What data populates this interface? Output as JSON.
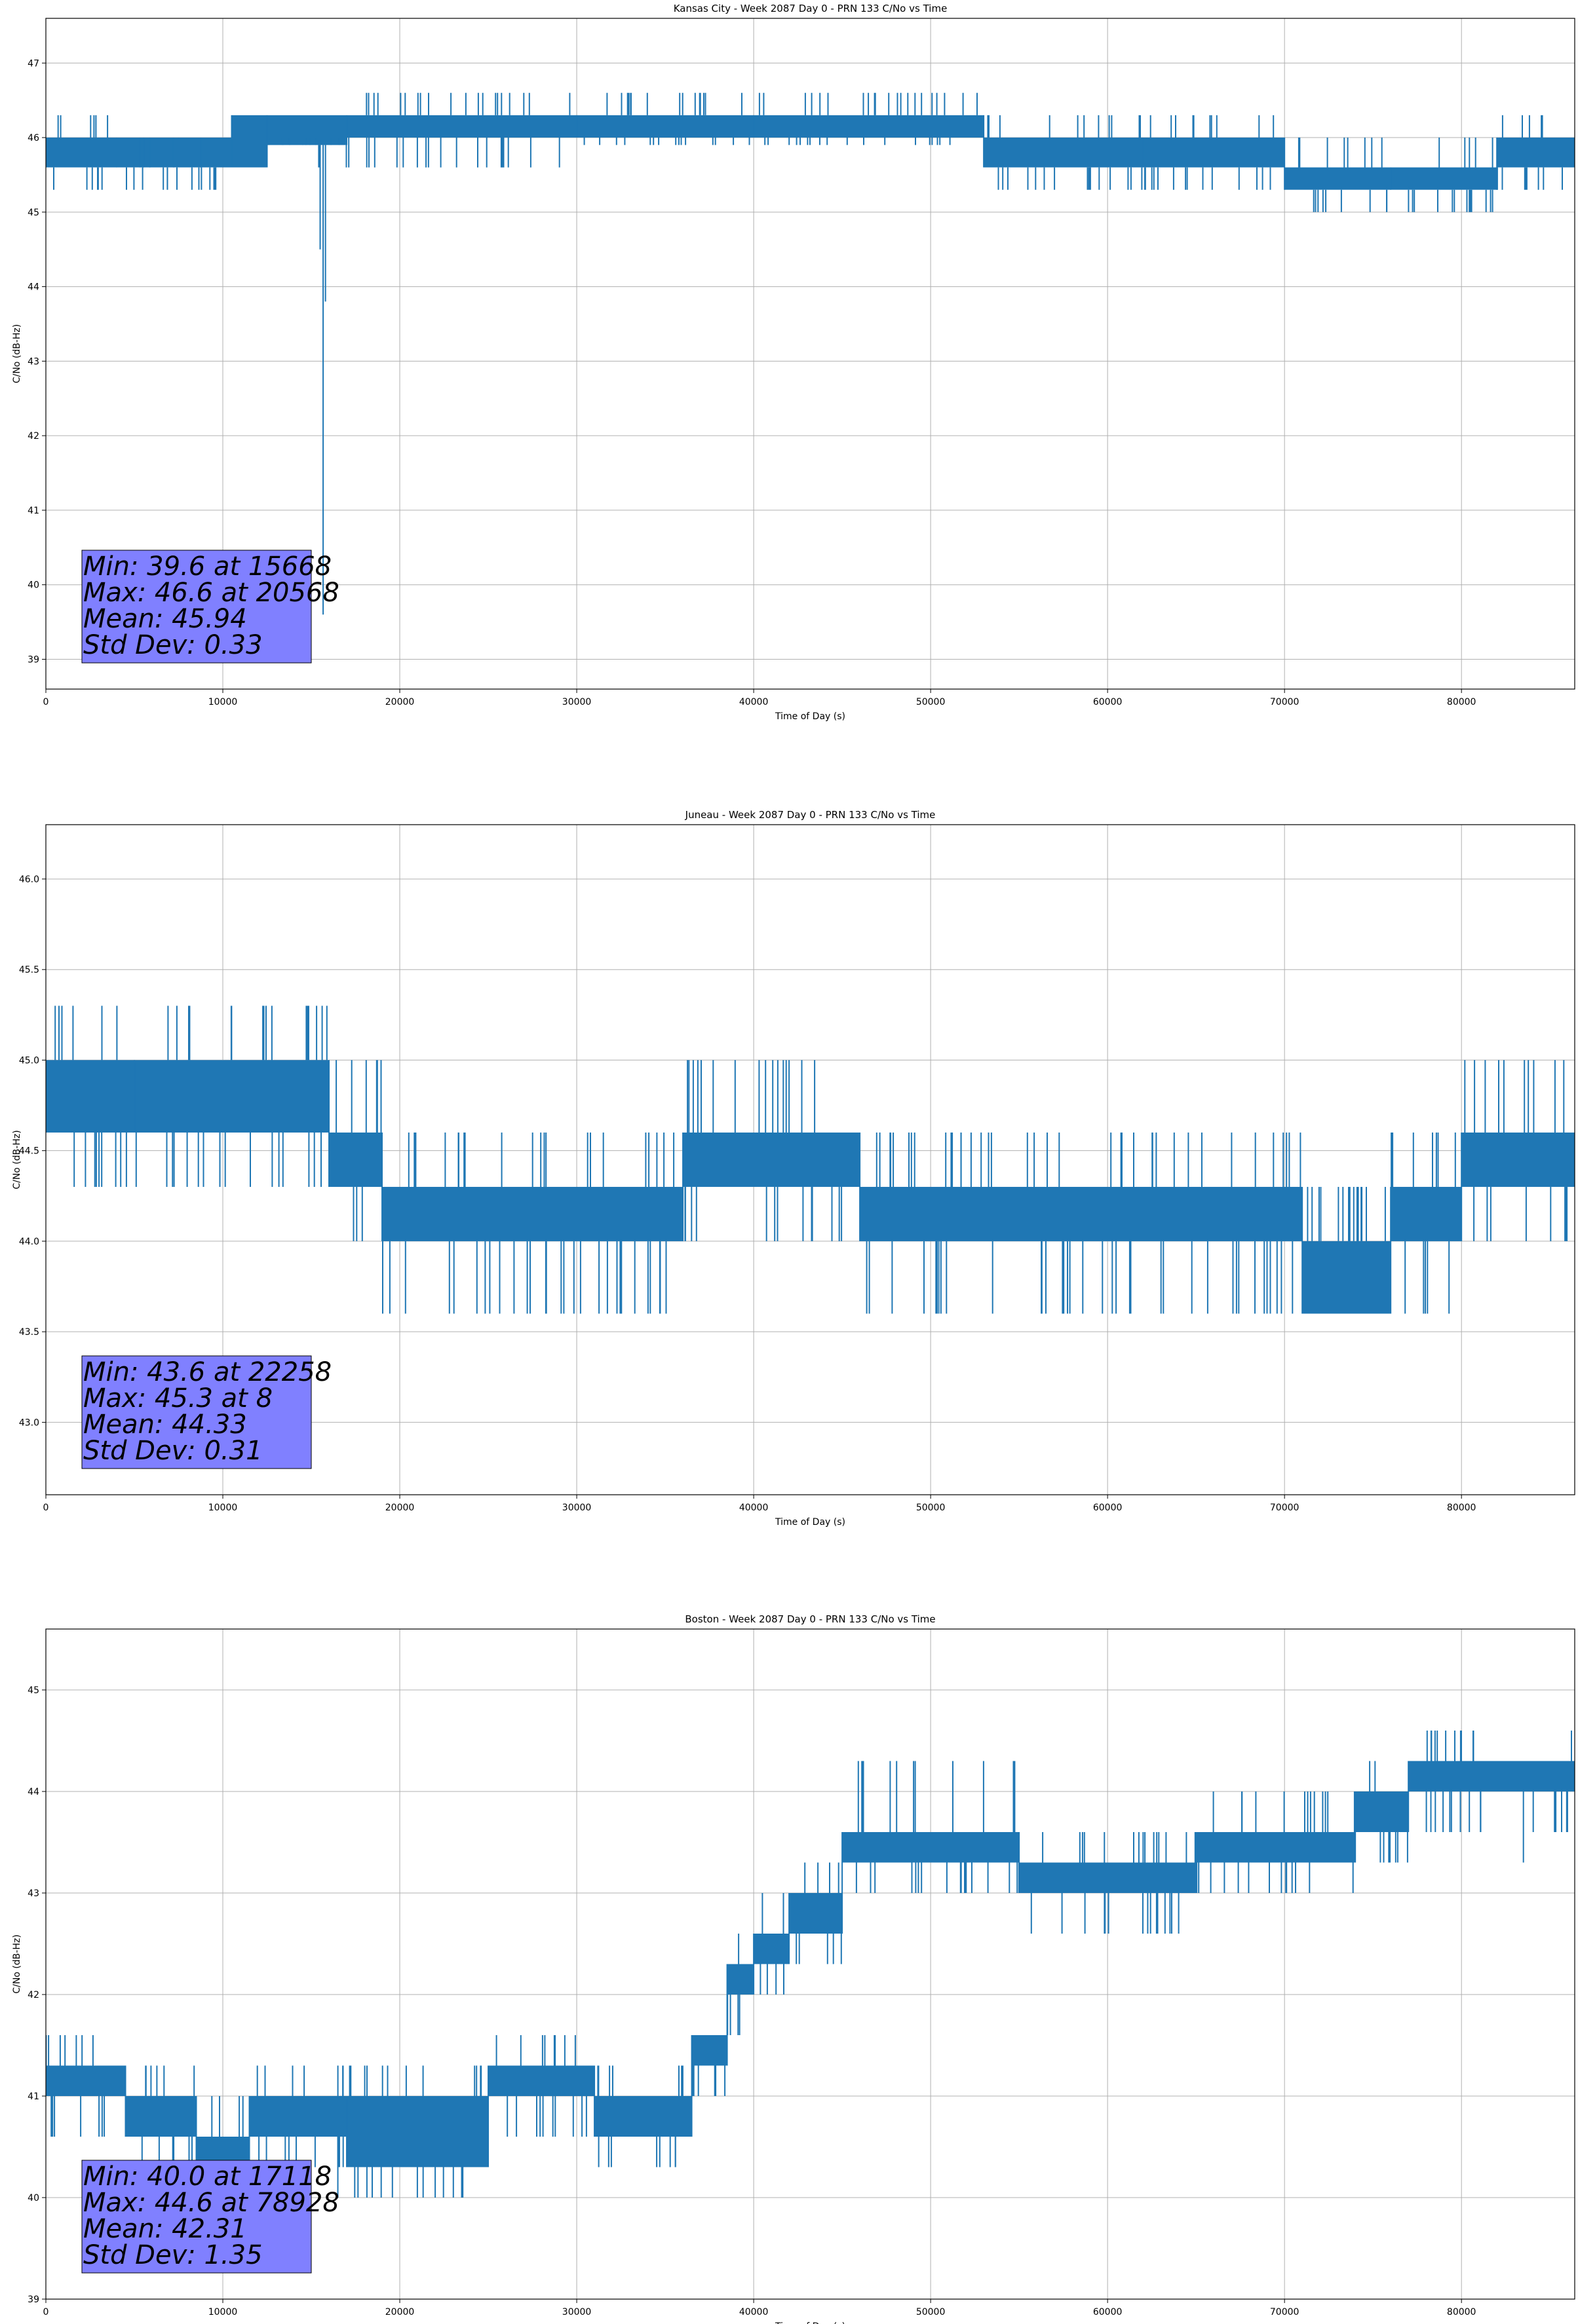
{
  "chart_data": [
    {
      "type": "line",
      "title": "Kansas City - Week 2087 Day 0 - PRN 133 C/No vs Time",
      "xlabel": "Time of Day (s)",
      "ylabel": "C/No (dB-Hz)",
      "xlim": [
        0,
        86400
      ],
      "ylim": [
        38.6,
        47.6
      ],
      "xticks": [
        0,
        10000,
        20000,
        30000,
        40000,
        50000,
        60000,
        70000,
        80000
      ],
      "yticks": [
        39,
        40,
        41,
        42,
        43,
        44,
        45,
        46,
        47
      ],
      "ytick_decimals": 0,
      "grid": true,
      "line_color": "#1f77b4",
      "stats_box": [
        "Min: 39.6 at 15668",
        "Max: 46.6 at 20568",
        "Mean: 45.94",
        "Std Dev: 0.33"
      ],
      "stats_box_color": "#8080ff",
      "series": [
        {
          "name": "C/No",
          "bands": [
            {
              "x0": 0,
              "x1": 4000,
              "lo": 45.6,
              "hi": 46.0,
              "excursions": [
                45.3,
                46.3
              ]
            },
            {
              "x0": 4000,
              "x1": 7500,
              "lo": 45.6,
              "hi": 46.0,
              "excursions": [
                45.3,
                46.0
              ]
            },
            {
              "x0": 7500,
              "x1": 10500,
              "lo": 45.6,
              "hi": 46.0,
              "excursions": [
                45.3,
                46.0
              ]
            },
            {
              "x0": 10500,
              "x1": 12500,
              "lo": 45.6,
              "hi": 46.3,
              "excursions": []
            },
            {
              "x0": 12500,
              "x1": 17000,
              "lo": 45.9,
              "hi": 46.3,
              "excursions": [
                45.6,
                46.0
              ]
            },
            {
              "x0": 17000,
              "x1": 30000,
              "lo": 46.0,
              "hi": 46.3,
              "excursions": [
                45.6,
                46.6
              ]
            },
            {
              "x0": 30000,
              "x1": 40000,
              "lo": 46.0,
              "hi": 46.3,
              "excursions": [
                45.9,
                46.6
              ]
            },
            {
              "x0": 40000,
              "x1": 53000,
              "lo": 46.0,
              "hi": 46.3,
              "excursions": [
                45.9,
                46.6
              ]
            },
            {
              "x0": 53000,
              "x1": 62000,
              "lo": 45.6,
              "hi": 46.0,
              "excursions": [
                45.3,
                46.3
              ]
            },
            {
              "x0": 62000,
              "x1": 70000,
              "lo": 45.6,
              "hi": 46.0,
              "excursions": [
                45.3,
                46.3
              ]
            },
            {
              "x0": 70000,
              "x1": 76000,
              "lo": 45.3,
              "hi": 45.6,
              "excursions": [
                45.0,
                46.0
              ]
            },
            {
              "x0": 76000,
              "x1": 82000,
              "lo": 45.3,
              "hi": 45.6,
              "excursions": [
                45.0,
                46.0
              ]
            },
            {
              "x0": 82000,
              "x1": 86400,
              "lo": 45.6,
              "hi": 46.0,
              "excursions": [
                45.3,
                46.3
              ]
            }
          ],
          "spikes": [
            {
              "x": 15500,
              "y": 44.5
            },
            {
              "x": 15668,
              "y": 39.6
            },
            {
              "x": 15800,
              "y": 43.8
            }
          ]
        }
      ]
    },
    {
      "type": "line",
      "title": "Juneau - Week 2087 Day 0 - PRN 133 C/No vs Time",
      "xlabel": "Time of Day (s)",
      "ylabel": "C/No (dB-Hz)",
      "xlim": [
        0,
        86400
      ],
      "ylim": [
        42.6,
        46.3
      ],
      "xticks": [
        0,
        10000,
        20000,
        30000,
        40000,
        50000,
        60000,
        70000,
        80000
      ],
      "yticks": [
        43.0,
        43.5,
        44.0,
        44.5,
        45.0,
        45.5,
        46.0
      ],
      "ytick_decimals": 1,
      "grid": true,
      "line_color": "#1f77b4",
      "stats_box": [
        "Min: 43.6 at 22258",
        "Max: 45.3 at 8",
        "Mean: 44.33",
        "Std Dev: 0.31"
      ],
      "stats_box_color": "#8080ff",
      "series": [
        {
          "name": "C/No",
          "bands": [
            {
              "x0": 0,
              "x1": 5000,
              "lo": 44.6,
              "hi": 45.0,
              "excursions": [
                44.3,
                45.3
              ]
            },
            {
              "x0": 5000,
              "x1": 16000,
              "lo": 44.6,
              "hi": 45.0,
              "excursions": [
                44.3,
                45.3
              ]
            },
            {
              "x0": 16000,
              "x1": 19000,
              "lo": 44.3,
              "hi": 44.6,
              "excursions": [
                44.0,
                45.0
              ]
            },
            {
              "x0": 19000,
              "x1": 36000,
              "lo": 44.0,
              "hi": 44.3,
              "excursions": [
                43.6,
                44.6
              ]
            },
            {
              "x0": 36000,
              "x1": 46000,
              "lo": 44.3,
              "hi": 44.6,
              "excursions": [
                44.0,
                45.0
              ]
            },
            {
              "x0": 46000,
              "x1": 71000,
              "lo": 44.0,
              "hi": 44.3,
              "excursions": [
                43.6,
                44.6
              ]
            },
            {
              "x0": 71000,
              "x1": 76000,
              "lo": 43.6,
              "hi": 44.0,
              "excursions": [
                44.3
              ]
            },
            {
              "x0": 76000,
              "x1": 80000,
              "lo": 44.0,
              "hi": 44.3,
              "excursions": [
                43.6,
                44.6
              ]
            },
            {
              "x0": 80000,
              "x1": 86400,
              "lo": 44.3,
              "hi": 44.6,
              "excursions": [
                44.0,
                45.0
              ]
            }
          ],
          "spikes": []
        }
      ]
    },
    {
      "type": "line",
      "title": "Boston - Week 2087 Day 0 - PRN 133 C/No vs Time",
      "xlabel": "Time of Day (s)",
      "ylabel": "C/No (dB-Hz)",
      "xlim": [
        0,
        86400
      ],
      "ylim": [
        39.0,
        45.6
      ],
      "xticks": [
        0,
        10000,
        20000,
        30000,
        40000,
        50000,
        60000,
        70000,
        80000
      ],
      "yticks": [
        39,
        40,
        41,
        42,
        43,
        44,
        45
      ],
      "ytick_decimals": 0,
      "grid": true,
      "line_color": "#1f77b4",
      "stats_box": [
        "Min: 40.0 at 17118",
        "Max: 44.6 at 78928",
        "Mean: 42.31",
        "Std Dev: 1.35"
      ],
      "stats_box_color": "#8080ff",
      "series": [
        {
          "name": "C/No",
          "bands": [
            {
              "x0": 0,
              "x1": 4500,
              "lo": 41.0,
              "hi": 41.3,
              "excursions": [
                40.6,
                41.6
              ]
            },
            {
              "x0": 4500,
              "x1": 8500,
              "lo": 40.6,
              "hi": 41.0,
              "excursions": [
                40.3,
                41.3
              ]
            },
            {
              "x0": 8500,
              "x1": 11500,
              "lo": 40.3,
              "hi": 40.6,
              "excursions": [
                40.0,
                41.0
              ]
            },
            {
              "x0": 11500,
              "x1": 17000,
              "lo": 40.6,
              "hi": 41.0,
              "excursions": [
                40.3,
                41.3
              ]
            },
            {
              "x0": 17000,
              "x1": 25000,
              "lo": 40.3,
              "hi": 41.0,
              "excursions": [
                40.0,
                41.3
              ]
            },
            {
              "x0": 25000,
              "x1": 31000,
              "lo": 41.0,
              "hi": 41.3,
              "excursions": [
                40.6,
                41.6
              ]
            },
            {
              "x0": 31000,
              "x1": 36500,
              "lo": 40.6,
              "hi": 41.0,
              "excursions": [
                40.3,
                41.3
              ]
            },
            {
              "x0": 36500,
              "x1": 38500,
              "lo": 41.3,
              "hi": 41.6,
              "excursions": [
                41.0
              ]
            },
            {
              "x0": 38500,
              "x1": 40000,
              "lo": 42.0,
              "hi": 42.3,
              "excursions": [
                41.6,
                42.6
              ]
            },
            {
              "x0": 40000,
              "x1": 42000,
              "lo": 42.3,
              "hi": 42.6,
              "excursions": [
                42.0,
                43.0
              ]
            },
            {
              "x0": 42000,
              "x1": 45000,
              "lo": 42.6,
              "hi": 43.0,
              "excursions": [
                42.3,
                43.3
              ]
            },
            {
              "x0": 45000,
              "x1": 55000,
              "lo": 43.3,
              "hi": 43.6,
              "excursions": [
                43.0,
                44.3
              ]
            },
            {
              "x0": 55000,
              "x1": 65000,
              "lo": 43.0,
              "hi": 43.3,
              "excursions": [
                42.6,
                43.6
              ]
            },
            {
              "x0": 65000,
              "x1": 74000,
              "lo": 43.3,
              "hi": 43.6,
              "excursions": [
                43.0,
                44.0
              ]
            },
            {
              "x0": 74000,
              "x1": 77000,
              "lo": 43.6,
              "hi": 44.0,
              "excursions": [
                43.3,
                44.3
              ]
            },
            {
              "x0": 77000,
              "x1": 86400,
              "lo": 44.0,
              "hi": 44.3,
              "excursions": [
                43.6,
                44.6
              ]
            }
          ],
          "spikes": [
            {
              "x": 16500,
              "y": 40.0
            },
            {
              "x": 23500,
              "y": 40.0
            },
            {
              "x": 83500,
              "y": 43.3
            }
          ]
        }
      ]
    }
  ]
}
